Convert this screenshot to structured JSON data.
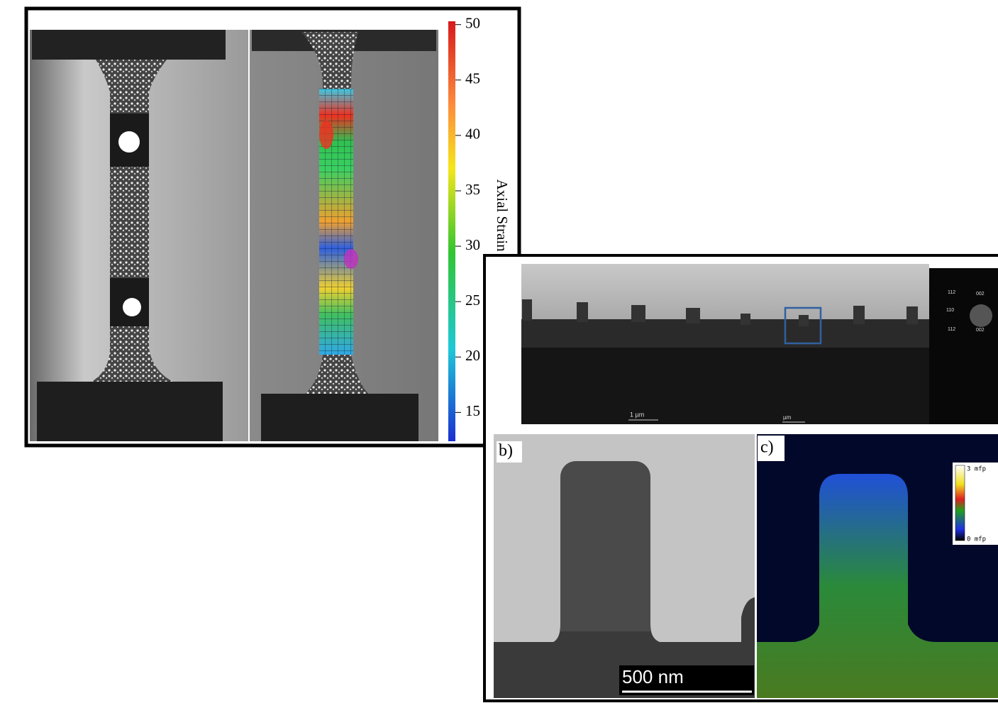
{
  "panel_a": {
    "colorbar": {
      "ticks": [
        50,
        45,
        40,
        35,
        30,
        25,
        20,
        15
      ],
      "range": [
        12.4,
        50.3
      ],
      "label": "Axial Strain (%)"
    }
  },
  "panel_top": {
    "scale_label": "1 µm",
    "scale_label_2": "µm",
    "diffraction_labels": [
      "112",
      "002",
      "110",
      "112",
      "002"
    ]
  },
  "panel_b": {
    "label": "b)",
    "scale_bar": "500 nm"
  },
  "panel_c": {
    "label": "c)",
    "legend_max": "3 mfp",
    "legend_min": "0 mfp"
  }
}
